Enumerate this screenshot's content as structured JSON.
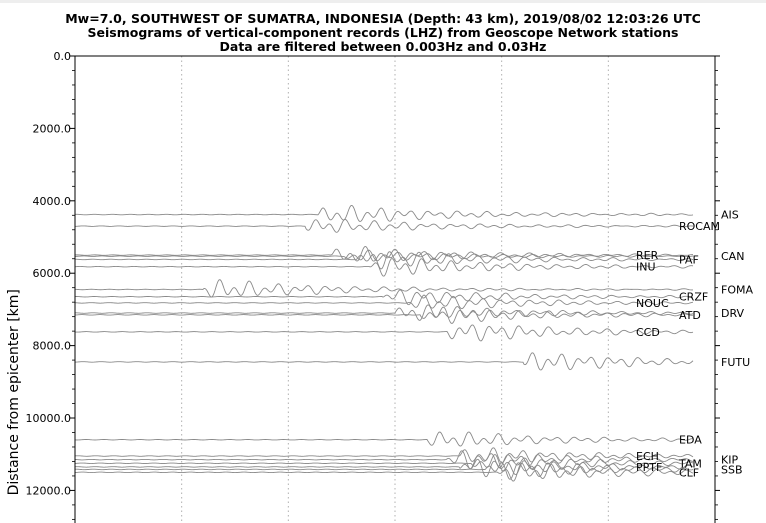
{
  "chart_data": {
    "type": "line",
    "title": [
      "Mw=7.0, SOUTHWEST OF SUMATRA, INDONESIA (Depth: 43 km), 2019/08/02 12:03:26 UTC",
      "Seismograms of vertical-component records (LHZ) from Geoscope Network stations",
      "Data are filtered between 0.003Hz and 0.03Hz"
    ],
    "ylabel": "Distance from epicenter [km]",
    "ylim": [
      0,
      12900
    ],
    "y_inverted": true,
    "y_ticks": [
      "0.0",
      "2000.0",
      "4000.0",
      "6000.0",
      "8000.0",
      "10000.0",
      "12000.0"
    ],
    "y_tick_values": [
      0,
      2000,
      4000,
      6000,
      8000,
      10000,
      12000
    ],
    "x_gridlines": 6,
    "grid": "vertical dotted",
    "trace_color": "#8a8a8a",
    "stations": [
      {
        "name": "AIS",
        "distance": 4380,
        "onset": 0.38,
        "amp": 1.0
      },
      {
        "name": "ROCAM",
        "distance": 4700,
        "onset": 0.36,
        "amp": 0.8
      },
      {
        "name": "RER",
        "distance": 5500,
        "onset": 0.4,
        "amp": 0.9
      },
      {
        "name": "CAN",
        "distance": 5530,
        "onset": 0.42,
        "amp": 0.6
      },
      {
        "name": "PAF",
        "distance": 5620,
        "onset": 0.44,
        "amp": 1.0
      },
      {
        "name": "INU",
        "distance": 5820,
        "onset": 0.46,
        "amp": 1.0
      },
      {
        "name": "FOMA",
        "distance": 6450,
        "onset": 0.2,
        "amp": 1.0
      },
      {
        "name": "CRZF",
        "distance": 6650,
        "onset": 0.48,
        "amp": 0.8
      },
      {
        "name": "NOUC",
        "distance": 6820,
        "onset": 0.52,
        "amp": 0.8
      },
      {
        "name": "DRV",
        "distance": 7100,
        "onset": 0.5,
        "amp": 0.9
      },
      {
        "name": "ATD",
        "distance": 7150,
        "onset": 0.54,
        "amp": 0.9
      },
      {
        "name": "CCD",
        "distance": 7620,
        "onset": 0.58,
        "amp": 1.0
      },
      {
        "name": "FUTU",
        "distance": 8450,
        "onset": 0.7,
        "amp": 1.0
      },
      {
        "name": "EDA",
        "distance": 10600,
        "onset": 0.55,
        "amp": 0.9
      },
      {
        "name": "ECH",
        "distance": 11050,
        "onset": 0.6,
        "amp": 0.9
      },
      {
        "name": "KIP",
        "distance": 11150,
        "onset": 0.58,
        "amp": 1.0
      },
      {
        "name": "TAM",
        "distance": 11250,
        "onset": 0.62,
        "amp": 0.9
      },
      {
        "name": "PPTF",
        "distance": 11350,
        "onset": 0.6,
        "amp": 1.0
      },
      {
        "name": "SSB",
        "distance": 11420,
        "onset": 0.64,
        "amp": 1.0
      },
      {
        "name": "CLF",
        "distance": 11500,
        "onset": 0.66,
        "amp": 1.0
      }
    ]
  }
}
